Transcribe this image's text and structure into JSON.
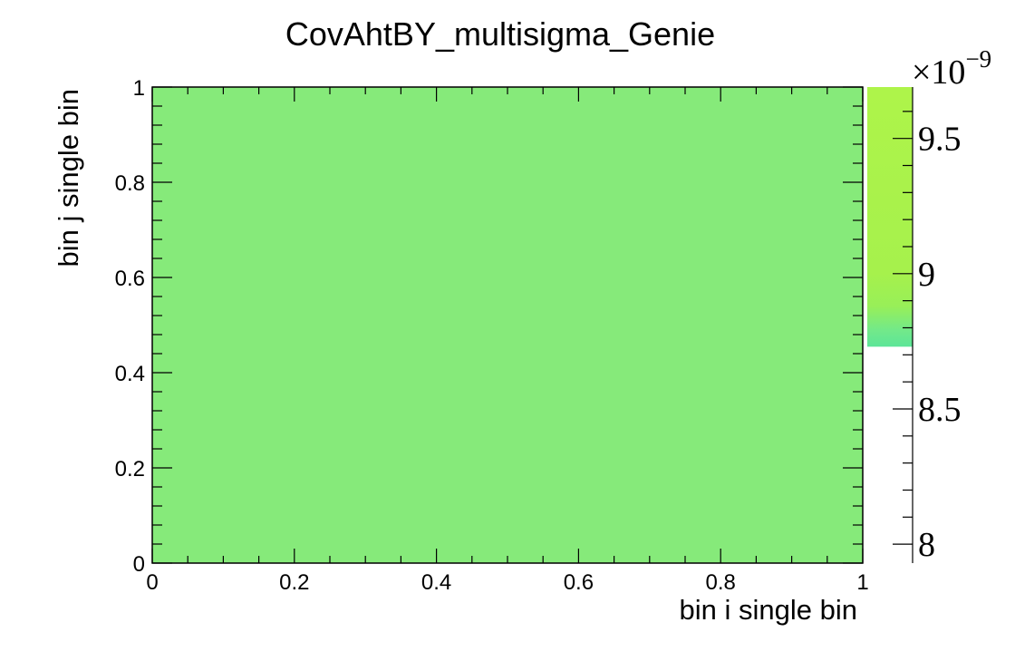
{
  "chart_data": {
    "type": "heatmap",
    "title": "CovAhtBY_multisigma_Genie",
    "xlabel": "bin i single bin",
    "ylabel": "bin j single bin",
    "xlim": [
      0,
      1
    ],
    "ylim": [
      0,
      1
    ],
    "x_ticks": [
      "0",
      "0.2",
      "0.4",
      "0.6",
      "0.8",
      "1"
    ],
    "y_ticks": [
      "0",
      "0.2",
      "0.4",
      "0.6",
      "0.8",
      "1"
    ],
    "cells": [
      {
        "x": [
          0,
          1
        ],
        "y": [
          0,
          1
        ],
        "value": 8.73e-09,
        "color": "#86ea7a"
      }
    ],
    "colorbar": {
      "multiplier": "×10",
      "exponent": "−9",
      "ticks": [
        "8",
        "8.5",
        "9",
        "9.5"
      ],
      "range": [
        7.93,
        9.69
      ],
      "filled_range": [
        8.73,
        9.69
      ],
      "gradient": [
        {
          "value": 8.73,
          "color": "#5ce598"
        },
        {
          "value": 8.79,
          "color": "#72e98a"
        },
        {
          "value": 8.88,
          "color": "#98ef58"
        },
        {
          "value": 9.0,
          "color": "#a6f14c"
        },
        {
          "value": 9.69,
          "color": "#aef44a"
        }
      ]
    },
    "grid": false,
    "legend": "none"
  }
}
